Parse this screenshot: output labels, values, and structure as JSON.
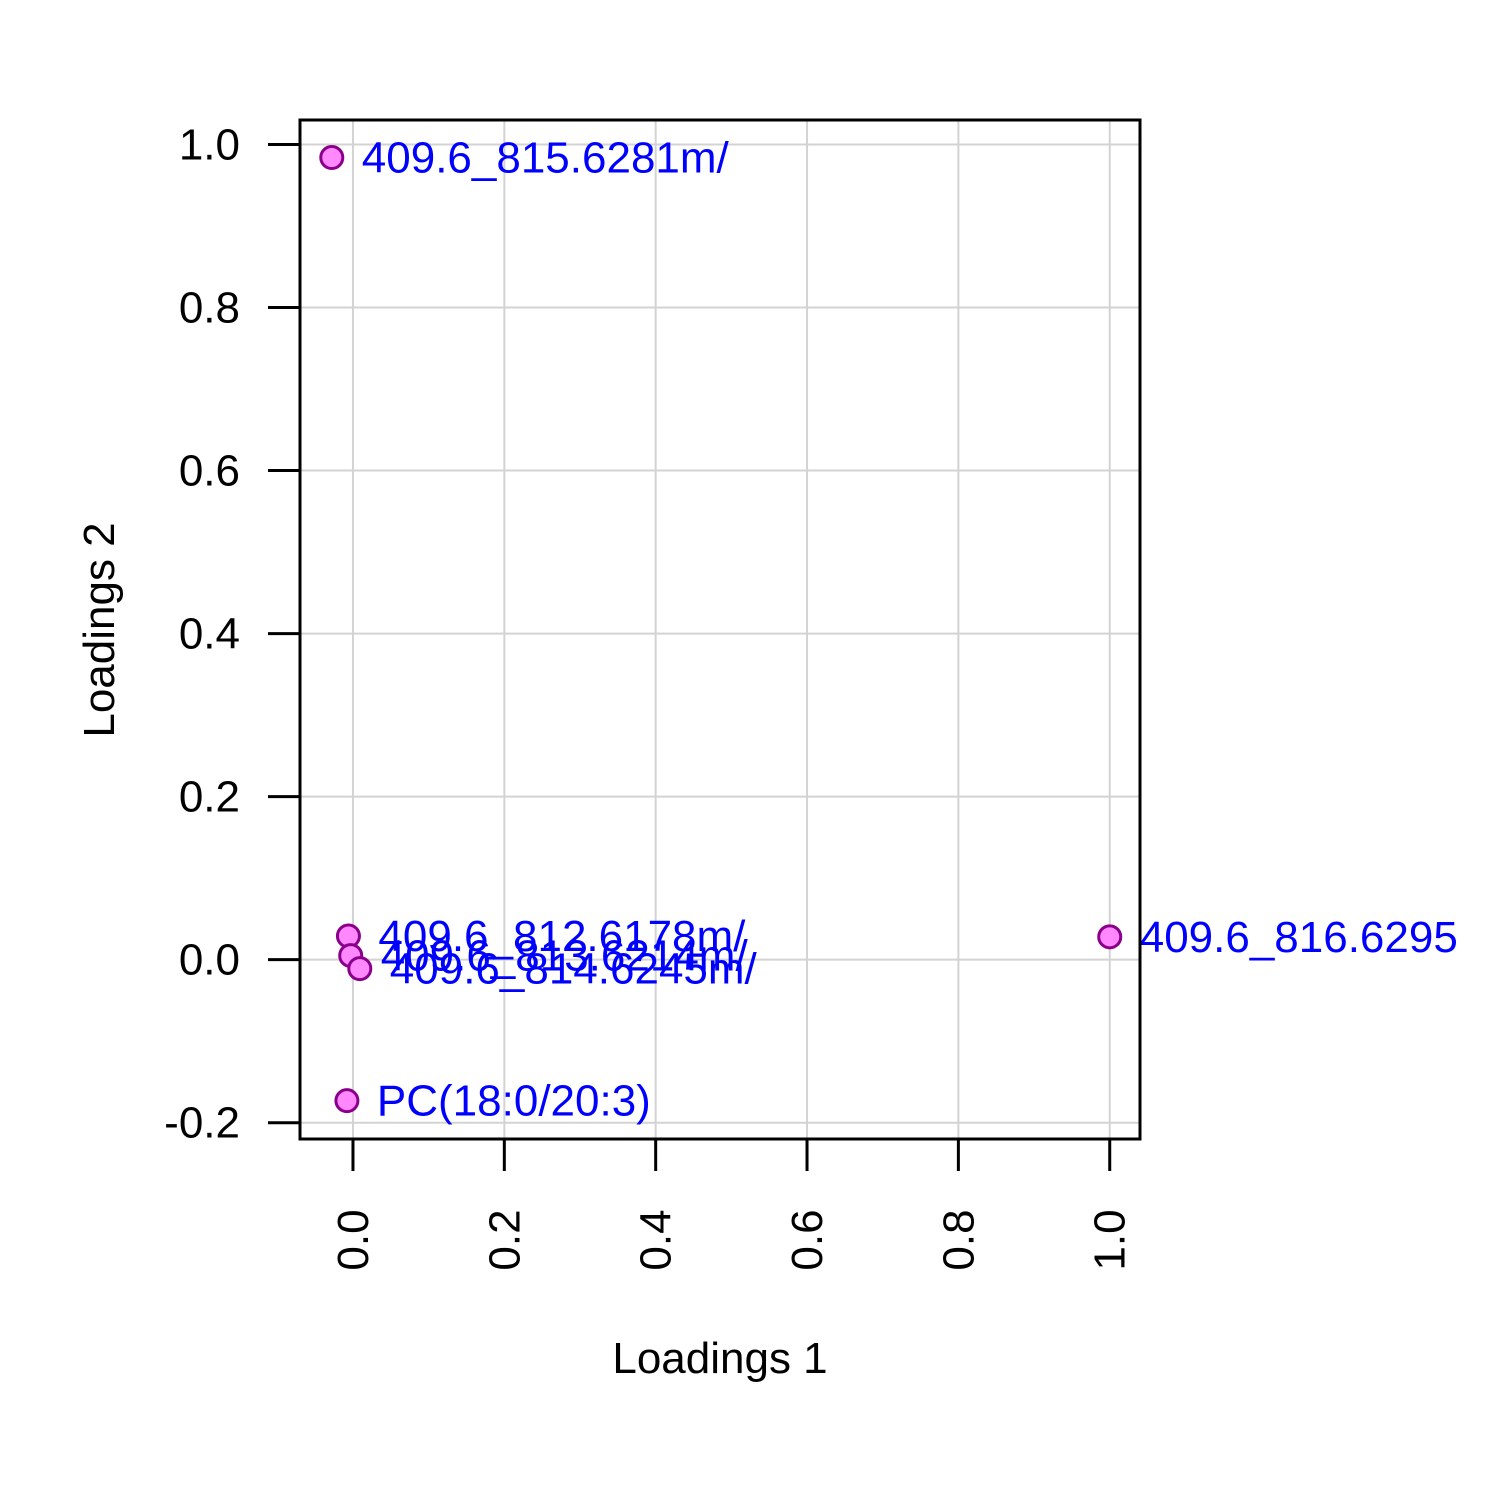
{
  "chart_data": {
    "type": "scatter",
    "title": "",
    "xlabel": "Loadings 1",
    "ylabel": "Loadings 2",
    "xlim": [
      -0.07,
      1.04
    ],
    "ylim": [
      -0.22,
      1.03
    ],
    "x_ticks": [
      0.0,
      0.2,
      0.4,
      0.6,
      0.8,
      1.0
    ],
    "x_tick_labels": [
      "0.0",
      "0.2",
      "0.4",
      "0.6",
      "0.8",
      "1.0"
    ],
    "y_ticks": [
      -0.2,
      0.0,
      0.2,
      0.4,
      0.6,
      0.8,
      1.0
    ],
    "y_tick_labels": [
      "-0.2",
      "0.0",
      "0.2",
      "0.4",
      "0.6",
      "0.8",
      "1.0"
    ],
    "grid": true,
    "point_fill": "#ff88ff",
    "point_stroke": "#8b008b",
    "label_color": "#0000ff",
    "points": [
      {
        "label": "409.6_815.6281m/",
        "x": -0.028,
        "y": 0.984
      },
      {
        "label": "409.6_812.6178m/",
        "x": -0.006,
        "y": 0.029
      },
      {
        "label": "409.6_813.6214m/",
        "x": -0.003,
        "y": 0.005
      },
      {
        "label": "409.6_814.6245m/",
        "x": 0.009,
        "y": -0.011
      },
      {
        "label": "409.6_816.6295",
        "x": 1.0,
        "y": 0.028
      },
      {
        "label": "PC(18:0/20:3)",
        "x": -0.008,
        "y": -0.173
      }
    ]
  }
}
